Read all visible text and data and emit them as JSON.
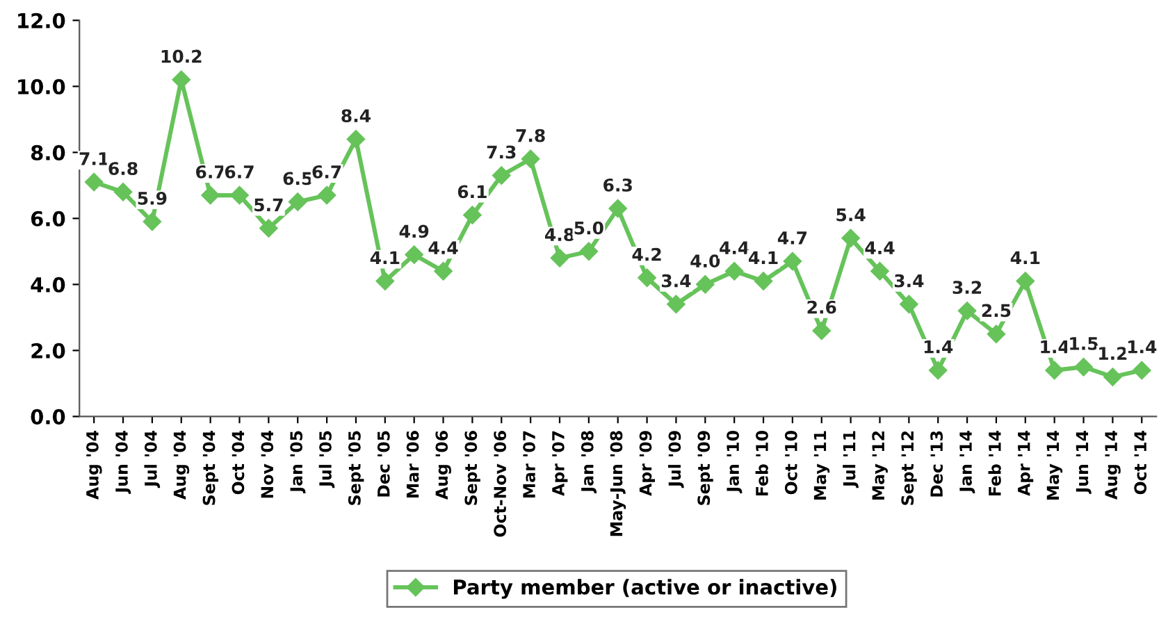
{
  "chart_data": {
    "type": "line",
    "categories": [
      "Aug '04",
      "Jun '04",
      "Jul '04",
      "Aug '04",
      "Sept '04",
      "Oct '04",
      "Nov '04",
      "Jan '05",
      "Jul '05",
      "Sept '05",
      "Dec '05",
      "Mar '06",
      "Aug '06",
      "Sept '06",
      "Oct-Nov '06",
      "Mar '07",
      "Apr '07",
      "Jan '08",
      "May-Jun '08",
      "Apr '09",
      "Jul '09",
      "Sept '09",
      "Jan '10",
      "Feb '10",
      "Oct '10",
      "May '11",
      "Jul '11",
      "May '12",
      "Sept '12",
      "Dec '13",
      "Jan '14",
      "Feb '14",
      "Apr '14",
      "May '14",
      "Jun '14",
      "Aug '14",
      "Oct '14"
    ],
    "series": [
      {
        "name": "Party member (active or inactive)",
        "color": "#66c35a",
        "value_labels": [
          "7.1",
          "6.8",
          "5.9",
          "10.2",
          "6.7",
          "6.7",
          "5.7",
          "6.5",
          "6.7",
          "8.4",
          "4.1",
          "4.9",
          "4.4",
          "6.1",
          "7.3",
          "7.8",
          "4.8",
          "5.0",
          "6.3",
          "4.2",
          "3.4",
          "4.0",
          "4.4",
          "4.1",
          "4.7",
          "2.6",
          "5.4",
          "4.4",
          "3.4",
          "1.4",
          "3.2",
          "2.5",
          "4.1",
          "1.4",
          "1.5",
          "1.2",
          "1.4"
        ],
        "values": [
          7.1,
          6.8,
          5.9,
          10.2,
          6.7,
          6.7,
          5.7,
          6.5,
          6.7,
          8.4,
          4.1,
          4.9,
          4.4,
          6.1,
          7.3,
          7.8,
          4.8,
          5.0,
          6.3,
          4.2,
          3.4,
          4.0,
          4.4,
          4.1,
          4.7,
          2.6,
          5.4,
          4.4,
          3.4,
          1.4,
          3.2,
          2.5,
          4.1,
          1.4,
          1.5,
          1.2,
          1.4
        ]
      }
    ],
    "ylim": [
      0,
      12
    ],
    "yticks": [
      {
        "value": 0,
        "label": "0.0"
      },
      {
        "value": 2,
        "label": "2.0"
      },
      {
        "value": 4,
        "label": "4.0"
      },
      {
        "value": 6,
        "label": "6.0"
      },
      {
        "value": 8,
        "label": "8.0"
      },
      {
        "value": 10,
        "label": "10.0"
      },
      {
        "value": 12,
        "label": "12.0"
      }
    ],
    "marker": "diamond",
    "line_style": "solid",
    "legend": "bottom",
    "grid": false
  }
}
